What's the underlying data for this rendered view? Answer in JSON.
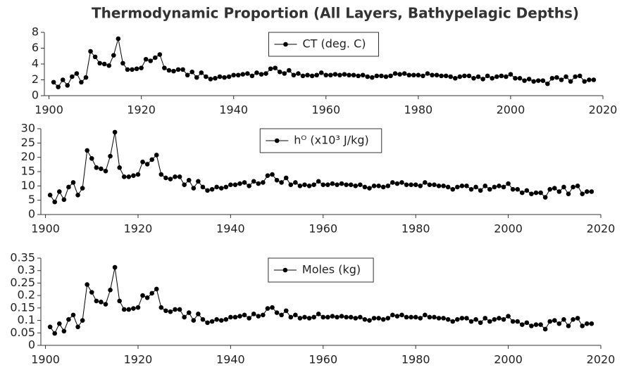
{
  "title": "Thermodynamic Proportion (All Layers, Bathypelagic Depths)",
  "chart_data": [
    {
      "type": "line",
      "xlim": [
        1899,
        2020
      ],
      "xticks": [
        1900,
        1920,
        1940,
        1960,
        1980,
        2000,
        2020
      ],
      "ylim": [
        0,
        8
      ],
      "yticks": [
        0,
        2,
        4,
        6,
        8
      ],
      "legend": "upper center",
      "x": [
        1901,
        1902,
        1903,
        1904,
        1905,
        1906,
        1907,
        1908,
        1909,
        1910,
        1911,
        1912,
        1913,
        1914,
        1915,
        1916,
        1917,
        1918,
        1919,
        1920,
        1921,
        1922,
        1923,
        1924,
        1925,
        1926,
        1927,
        1928,
        1929,
        1930,
        1931,
        1932,
        1933,
        1934,
        1935,
        1936,
        1937,
        1938,
        1939,
        1940,
        1941,
        1942,
        1943,
        1944,
        1945,
        1946,
        1947,
        1948,
        1949,
        1950,
        1951,
        1952,
        1953,
        1954,
        1955,
        1956,
        1957,
        1958,
        1959,
        1960,
        1961,
        1962,
        1963,
        1964,
        1965,
        1966,
        1967,
        1968,
        1969,
        1970,
        1971,
        1972,
        1973,
        1974,
        1975,
        1976,
        1977,
        1978,
        1979,
        1980,
        1981,
        1982,
        1983,
        1984,
        1985,
        1986,
        1987,
        1988,
        1989,
        1990,
        1991,
        1992,
        1993,
        1994,
        1995,
        1996,
        1997,
        1998,
        1999,
        2000,
        2001,
        2002,
        2003,
        2004,
        2005,
        2006,
        2007,
        2008,
        2009,
        2010,
        2011,
        2012,
        2013,
        2014,
        2015,
        2016,
        2017,
        2018
      ],
      "series": [
        {
          "name": "CT (deg. C)",
          "color": "#000000",
          "values": [
            1.7,
            1.1,
            2.0,
            1.3,
            2.4,
            2.8,
            1.7,
            2.3,
            5.6,
            4.9,
            4.1,
            4.0,
            3.8,
            5.1,
            7.2,
            4.1,
            3.3,
            3.3,
            3.4,
            3.5,
            4.6,
            4.4,
            4.8,
            5.2,
            3.5,
            3.2,
            3.1,
            3.3,
            3.3,
            2.6,
            3.0,
            2.3,
            2.9,
            2.4,
            2.1,
            2.2,
            2.4,
            2.3,
            2.4,
            2.6,
            2.6,
            2.7,
            2.8,
            2.5,
            2.9,
            2.7,
            2.8,
            3.4,
            3.5,
            3.0,
            2.8,
            3.2,
            2.6,
            2.8,
            2.5,
            2.6,
            2.5,
            2.6,
            2.9,
            2.6,
            2.6,
            2.7,
            2.6,
            2.7,
            2.6,
            2.6,
            2.5,
            2.6,
            2.4,
            2.3,
            2.5,
            2.5,
            2.4,
            2.5,
            2.8,
            2.7,
            2.8,
            2.6,
            2.6,
            2.6,
            2.5,
            2.8,
            2.6,
            2.6,
            2.5,
            2.5,
            2.4,
            2.2,
            2.4,
            2.5,
            2.5,
            2.2,
            2.4,
            2.1,
            2.5,
            2.2,
            2.4,
            2.5,
            2.4,
            2.7,
            2.2,
            2.2,
            1.9,
            2.1,
            1.8,
            1.9,
            1.9,
            1.5,
            2.2,
            2.3,
            2.0,
            2.4,
            1.8,
            2.4,
            2.5,
            1.8,
            2.0,
            2.0
          ]
        }
      ]
    },
    {
      "type": "line",
      "xlim": [
        1899,
        2020
      ],
      "xticks": [
        1900,
        1920,
        1940,
        1960,
        1980,
        2000,
        2020
      ],
      "ylim": [
        0,
        30
      ],
      "yticks": [
        0,
        5,
        10,
        15,
        20,
        25,
        30
      ],
      "legend": "upper center",
      "x": [
        1901,
        1902,
        1903,
        1904,
        1905,
        1906,
        1907,
        1908,
        1909,
        1910,
        1911,
        1912,
        1913,
        1914,
        1915,
        1916,
        1917,
        1918,
        1919,
        1920,
        1921,
        1922,
        1923,
        1924,
        1925,
        1926,
        1927,
        1928,
        1929,
        1930,
        1931,
        1932,
        1933,
        1934,
        1935,
        1936,
        1937,
        1938,
        1939,
        1940,
        1941,
        1942,
        1943,
        1944,
        1945,
        1946,
        1947,
        1948,
        1949,
        1950,
        1951,
        1952,
        1953,
        1954,
        1955,
        1956,
        1957,
        1958,
        1959,
        1960,
        1961,
        1962,
        1963,
        1964,
        1965,
        1966,
        1967,
        1968,
        1969,
        1970,
        1971,
        1972,
        1973,
        1974,
        1975,
        1976,
        1977,
        1978,
        1979,
        1980,
        1981,
        1982,
        1983,
        1984,
        1985,
        1986,
        1987,
        1988,
        1989,
        1990,
        1991,
        1992,
        1993,
        1994,
        1995,
        1996,
        1997,
        1998,
        1999,
        2000,
        2001,
        2002,
        2003,
        2004,
        2005,
        2006,
        2007,
        2008,
        2009,
        2010,
        2011,
        2012,
        2013,
        2014,
        2015,
        2016,
        2017,
        2018
      ],
      "series": [
        {
          "name": "hᴼ (x10³ J/kg)",
          "color": "#000000",
          "values": [
            6.8,
            4.4,
            8,
            5.2,
            9.6,
            11.2,
            6.8,
            9.2,
            22.4,
            19.6,
            16.4,
            16,
            15.2,
            20.4,
            28.8,
            16.4,
            13.2,
            13.2,
            13.6,
            14,
            18.4,
            17.6,
            19.2,
            20.8,
            14,
            12.8,
            12.4,
            13.2,
            13.2,
            10.4,
            12,
            9.2,
            11.6,
            9.6,
            8.4,
            8.8,
            9.6,
            9.2,
            9.6,
            10.4,
            10.4,
            10.8,
            11.2,
            10,
            11.6,
            10.8,
            11.2,
            13.6,
            14,
            12,
            11.2,
            12.8,
            10.4,
            11.2,
            10,
            10.4,
            10,
            10.4,
            11.6,
            10.4,
            10.4,
            10.8,
            10.4,
            10.8,
            10.4,
            10.4,
            10,
            10.4,
            9.6,
            9.2,
            10,
            10,
            9.6,
            10,
            11.2,
            10.8,
            11.2,
            10.4,
            10.4,
            10.4,
            10,
            11.2,
            10.4,
            10.4,
            10,
            10,
            9.6,
            8.8,
            9.6,
            10,
            10,
            8.8,
            9.6,
            8.4,
            10,
            8.8,
            9.6,
            10,
            9.6,
            10.8,
            8.8,
            8.8,
            7.6,
            8.4,
            7.2,
            7.6,
            7.6,
            6,
            8.8,
            9.2,
            8,
            9.6,
            7.2,
            9.6,
            10,
            7.2,
            8,
            8
          ]
        }
      ]
    },
    {
      "type": "line",
      "xlim": [
        1899,
        2020
      ],
      "xticks": [
        1900,
        1920,
        1940,
        1960,
        1980,
        2000,
        2020
      ],
      "ylim": [
        0,
        0.35
      ],
      "yticks": [
        0,
        0.05,
        0.1,
        0.15,
        0.2,
        0.25,
        0.3,
        0.35
      ],
      "legend": "upper center",
      "x": [
        1901,
        1902,
        1903,
        1904,
        1905,
        1906,
        1907,
        1908,
        1909,
        1910,
        1911,
        1912,
        1913,
        1914,
        1915,
        1916,
        1917,
        1918,
        1919,
        1920,
        1921,
        1922,
        1923,
        1924,
        1925,
        1926,
        1927,
        1928,
        1929,
        1930,
        1931,
        1932,
        1933,
        1934,
        1935,
        1936,
        1937,
        1938,
        1939,
        1940,
        1941,
        1942,
        1943,
        1944,
        1945,
        1946,
        1947,
        1948,
        1949,
        1950,
        1951,
        1952,
        1953,
        1954,
        1955,
        1956,
        1957,
        1958,
        1959,
        1960,
        1961,
        1962,
        1963,
        1964,
        1965,
        1966,
        1967,
        1968,
        1969,
        1970,
        1971,
        1972,
        1973,
        1974,
        1975,
        1976,
        1977,
        1978,
        1979,
        1980,
        1981,
        1982,
        1983,
        1984,
        1985,
        1986,
        1987,
        1988,
        1989,
        1990,
        1991,
        1992,
        1993,
        1994,
        1995,
        1996,
        1997,
        1998,
        1999,
        2000,
        2001,
        2002,
        2003,
        2004,
        2005,
        2006,
        2007,
        2008,
        2009,
        2010,
        2011,
        2012,
        2013,
        2014,
        2015,
        2016,
        2017,
        2018
      ],
      "series": [
        {
          "name": "Moles (kg)",
          "color": "#000000",
          "values": [
            0.074,
            0.048,
            0.087,
            0.057,
            0.104,
            0.122,
            0.074,
            0.1,
            0.244,
            0.213,
            0.178,
            0.174,
            0.165,
            0.222,
            0.313,
            0.178,
            0.144,
            0.144,
            0.148,
            0.152,
            0.2,
            0.191,
            0.209,
            0.226,
            0.152,
            0.139,
            0.135,
            0.144,
            0.144,
            0.113,
            0.131,
            0.1,
            0.126,
            0.104,
            0.091,
            0.096,
            0.104,
            0.1,
            0.104,
            0.113,
            0.113,
            0.117,
            0.122,
            0.109,
            0.126,
            0.117,
            0.122,
            0.148,
            0.152,
            0.131,
            0.122,
            0.139,
            0.113,
            0.122,
            0.109,
            0.113,
            0.109,
            0.113,
            0.126,
            0.113,
            0.113,
            0.117,
            0.113,
            0.117,
            0.113,
            0.113,
            0.109,
            0.113,
            0.104,
            0.1,
            0.109,
            0.109,
            0.104,
            0.109,
            0.122,
            0.117,
            0.122,
            0.113,
            0.113,
            0.113,
            0.109,
            0.122,
            0.113,
            0.113,
            0.109,
            0.109,
            0.104,
            0.096,
            0.104,
            0.109,
            0.109,
            0.096,
            0.104,
            0.091,
            0.109,
            0.096,
            0.104,
            0.109,
            0.104,
            0.117,
            0.096,
            0.096,
            0.083,
            0.091,
            0.078,
            0.083,
            0.083,
            0.065,
            0.096,
            0.1,
            0.087,
            0.104,
            0.078,
            0.104,
            0.109,
            0.078,
            0.087,
            0.087
          ]
        }
      ]
    }
  ]
}
